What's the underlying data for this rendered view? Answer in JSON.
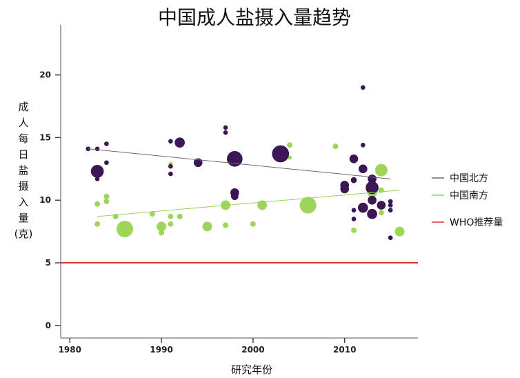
{
  "chart_data": {
    "type": "scatter",
    "title": "中国成人盐摄入量趋势",
    "xlabel": "研究年份",
    "ylabel_chars": [
      "成",
      "人",
      "每",
      "日",
      "盐",
      "摄",
      "入",
      "量",
      "(克)"
    ],
    "xlim": [
      1979,
      2018
    ],
    "ylim": [
      -1,
      24
    ],
    "xticks": [
      1980,
      1990,
      2000,
      2010
    ],
    "yticks": [
      0,
      5,
      10,
      15,
      20
    ],
    "legend_position": "right",
    "colors": {
      "north": "#3d1657",
      "south": "#9fd65a",
      "north_line": "#6b6b78",
      "south_line": "#8fd45a",
      "who": "#e0303a"
    },
    "series": [
      {
        "name": "中国北方",
        "key": "north",
        "trend": [
          [
            1982,
            14.1
          ],
          [
            2015,
            11.7
          ]
        ],
        "points": [
          {
            "x": 1982,
            "y": 14.1,
            "s": 3
          },
          {
            "x": 1983,
            "y": 14.1,
            "s": 3
          },
          {
            "x": 1983,
            "y": 12.3,
            "s": 9
          },
          {
            "x": 1983,
            "y": 11.7,
            "s": 3
          },
          {
            "x": 1984,
            "y": 14.5,
            "s": 3
          },
          {
            "x": 1984,
            "y": 13.0,
            "s": 3
          },
          {
            "x": 1991,
            "y": 14.7,
            "s": 3
          },
          {
            "x": 1991,
            "y": 12.7,
            "s": 3
          },
          {
            "x": 1991,
            "y": 12.1,
            "s": 3
          },
          {
            "x": 1992,
            "y": 14.6,
            "s": 7
          },
          {
            "x": 1994,
            "y": 13.0,
            "s": 6
          },
          {
            "x": 1997,
            "y": 15.8,
            "s": 3
          },
          {
            "x": 1997,
            "y": 15.4,
            "s": 3
          },
          {
            "x": 1998,
            "y": 13.3,
            "s": 11
          },
          {
            "x": 1998,
            "y": 10.6,
            "s": 6
          },
          {
            "x": 1998,
            "y": 10.3,
            "s": 5
          },
          {
            "x": 2003,
            "y": 13.7,
            "s": 12
          },
          {
            "x": 2011,
            "y": 13.3,
            "s": 6
          },
          {
            "x": 2011,
            "y": 11.6,
            "s": 4
          },
          {
            "x": 2010,
            "y": 11.2,
            "s": 6
          },
          {
            "x": 2010,
            "y": 10.9,
            "s": 6
          },
          {
            "x": 2011,
            "y": 9.2,
            "s": 3
          },
          {
            "x": 2011,
            "y": 8.5,
            "s": 3
          },
          {
            "x": 2012,
            "y": 19.0,
            "s": 3
          },
          {
            "x": 2012,
            "y": 14.4,
            "s": 3
          },
          {
            "x": 2012,
            "y": 12.5,
            "s": 6
          },
          {
            "x": 2012,
            "y": 9.4,
            "s": 7
          },
          {
            "x": 2013,
            "y": 11.7,
            "s": 6
          },
          {
            "x": 2013,
            "y": 11.0,
            "s": 9
          },
          {
            "x": 2013,
            "y": 10.0,
            "s": 6
          },
          {
            "x": 2013,
            "y": 8.9,
            "s": 7
          },
          {
            "x": 2014,
            "y": 9.6,
            "s": 6
          },
          {
            "x": 2015,
            "y": 9.9,
            "s": 3
          },
          {
            "x": 2015,
            "y": 9.6,
            "s": 3
          },
          {
            "x": 2015,
            "y": 9.2,
            "s": 3
          },
          {
            "x": 2015,
            "y": 7.0,
            "s": 3
          }
        ]
      },
      {
        "name": "中国南方",
        "key": "south",
        "trend": [
          [
            1983,
            8.7
          ],
          [
            2016,
            10.8
          ]
        ],
        "points": [
          {
            "x": 1983,
            "y": 9.7,
            "s": 4
          },
          {
            "x": 1983,
            "y": 8.1,
            "s": 4
          },
          {
            "x": 1984,
            "y": 10.3,
            "s": 4
          },
          {
            "x": 1984,
            "y": 9.9,
            "s": 4
          },
          {
            "x": 1985,
            "y": 8.7,
            "s": 4
          },
          {
            "x": 1986,
            "y": 7.7,
            "s": 12
          },
          {
            "x": 1989,
            "y": 8.9,
            "s": 4
          },
          {
            "x": 1990,
            "y": 7.9,
            "s": 7
          },
          {
            "x": 1990,
            "y": 7.4,
            "s": 4
          },
          {
            "x": 1991,
            "y": 12.9,
            "s": 3
          },
          {
            "x": 1991,
            "y": 8.7,
            "s": 4
          },
          {
            "x": 1991,
            "y": 8.1,
            "s": 4
          },
          {
            "x": 1992,
            "y": 8.7,
            "s": 4
          },
          {
            "x": 1995,
            "y": 7.9,
            "s": 7
          },
          {
            "x": 1997,
            "y": 9.6,
            "s": 7
          },
          {
            "x": 1997,
            "y": 8.0,
            "s": 4
          },
          {
            "x": 2000,
            "y": 8.1,
            "s": 4
          },
          {
            "x": 2001,
            "y": 9.6,
            "s": 7
          },
          {
            "x": 2004,
            "y": 14.4,
            "s": 4
          },
          {
            "x": 2004,
            "y": 13.4,
            "s": 3
          },
          {
            "x": 2006,
            "y": 9.6,
            "s": 12
          },
          {
            "x": 2009,
            "y": 14.3,
            "s": 4
          },
          {
            "x": 2011,
            "y": 7.6,
            "s": 4
          },
          {
            "x": 2013,
            "y": 10.6,
            "s": 7
          },
          {
            "x": 2013,
            "y": 10.2,
            "s": 4
          },
          {
            "x": 2014,
            "y": 12.4,
            "s": 9
          },
          {
            "x": 2014,
            "y": 10.8,
            "s": 4
          },
          {
            "x": 2014,
            "y": 9.0,
            "s": 4
          },
          {
            "x": 2016,
            "y": 7.5,
            "s": 7
          }
        ]
      },
      {
        "name": "WHO推荐量",
        "key": "who",
        "hline": 5
      }
    ]
  }
}
